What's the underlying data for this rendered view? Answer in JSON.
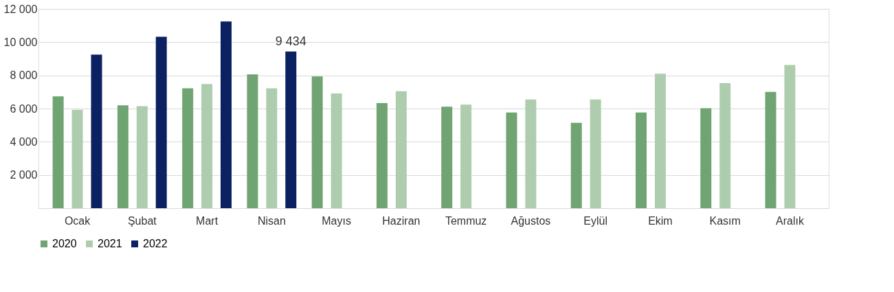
{
  "chart_data": {
    "type": "bar",
    "categories": [
      "Ocak",
      "Şubat",
      "Mart",
      "Nisan",
      "Mayıs",
      "Haziran",
      "Temmuz",
      "Ağustos",
      "Eylül",
      "Ekim",
      "Kasım",
      "Aralık"
    ],
    "series": [
      {
        "name": "2020",
        "color": "#70a472",
        "values": [
          6730,
          6200,
          7220,
          8060,
          7930,
          6330,
          6110,
          5760,
          5140,
          5760,
          6020,
          7000
        ]
      },
      {
        "name": "2021",
        "color": "#aecdae",
        "values": [
          5930,
          6150,
          7480,
          7220,
          6910,
          7040,
          6240,
          6550,
          6550,
          8100,
          7530,
          8630
        ]
      },
      {
        "name": "2022",
        "color": "#0c2161",
        "values": [
          9250,
          10320,
          11250,
          9434,
          null,
          null,
          null,
          null,
          null,
          null,
          null,
          null
        ],
        "value_labels": [
          null,
          null,
          null,
          "9 434",
          null,
          null,
          null,
          null,
          null,
          null,
          null,
          null
        ]
      }
    ],
    "ylim": [
      0,
      12000
    ],
    "yticks": [
      {
        "value": 2000,
        "label": "2 000"
      },
      {
        "value": 4000,
        "label": "4 000"
      },
      {
        "value": 6000,
        "label": "6 000"
      },
      {
        "value": 8000,
        "label": "8 000"
      },
      {
        "value": 10000,
        "label": "10 000"
      },
      {
        "value": 12000,
        "label": "12 000"
      }
    ],
    "grid": "y",
    "legend": "bottom"
  }
}
